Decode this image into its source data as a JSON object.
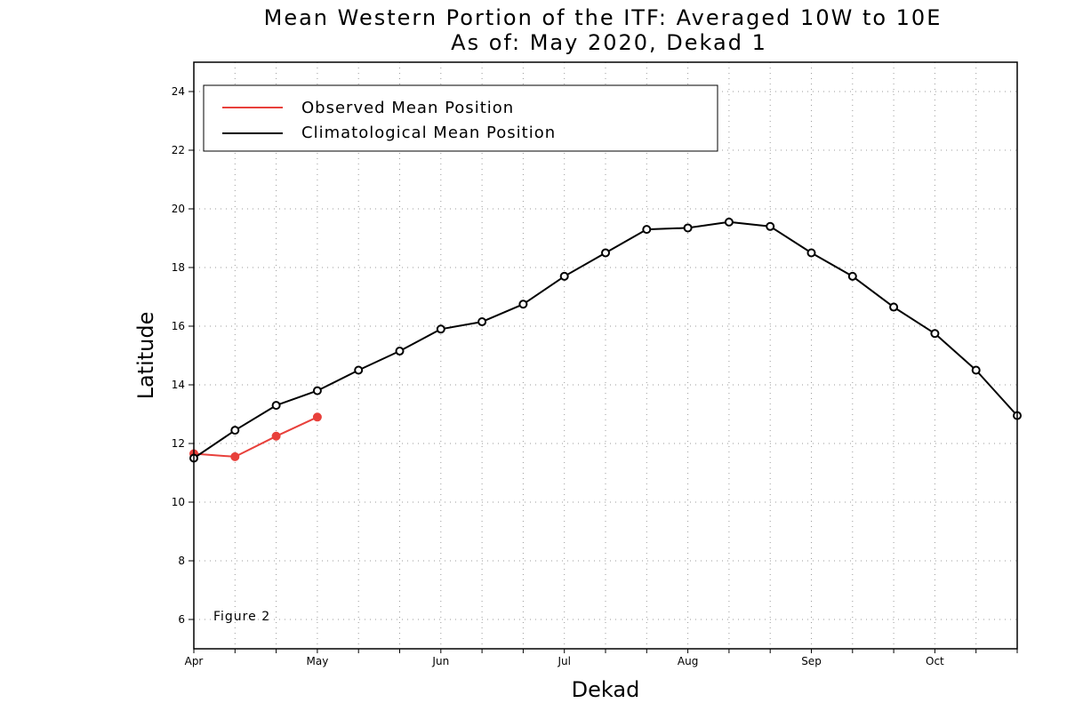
{
  "chart_data": {
    "type": "line",
    "title": "Mean Western Portion of the ITF: Averaged 10W to 10E",
    "subtitle": "As of: May 2020, Dekad 1",
    "xlabel": "Dekad",
    "ylabel": "Latitude",
    "xlim": [
      0,
      20
    ],
    "ylim": [
      5,
      25
    ],
    "x_ticks": [
      {
        "x": 0,
        "label": "Apr"
      },
      {
        "x": 3,
        "label": "May"
      },
      {
        "x": 6,
        "label": "Jun"
      },
      {
        "x": 9,
        "label": "Jul"
      },
      {
        "x": 12,
        "label": "Aug"
      },
      {
        "x": 15,
        "label": "Sep"
      },
      {
        "x": 18,
        "label": "Oct"
      }
    ],
    "y_ticks": [
      6,
      8,
      10,
      12,
      14,
      16,
      18,
      20,
      22,
      24
    ],
    "grid": true,
    "legend_position": "top-left",
    "series": [
      {
        "name": "Observed Mean Position",
        "color": "#e8403b",
        "marker": "filled-circle",
        "x": [
          0,
          1,
          2,
          3
        ],
        "values": [
          11.65,
          11.55,
          12.25,
          12.9
        ]
      },
      {
        "name": "Climatological Mean Position",
        "color": "#000000",
        "marker": "open-circle",
        "x": [
          0,
          1,
          2,
          3,
          4,
          5,
          6,
          7,
          8,
          9,
          10,
          11,
          12,
          13,
          14,
          15,
          16,
          17,
          18,
          19,
          20
        ],
        "values": [
          11.5,
          12.45,
          13.3,
          13.8,
          14.5,
          15.15,
          15.9,
          16.15,
          16.75,
          17.7,
          18.5,
          19.3,
          19.35,
          19.55,
          19.4,
          18.5,
          17.7,
          16.65,
          15.75,
          14.5,
          12.95
        ]
      }
    ],
    "annotations": [
      "Figure 2"
    ]
  }
}
